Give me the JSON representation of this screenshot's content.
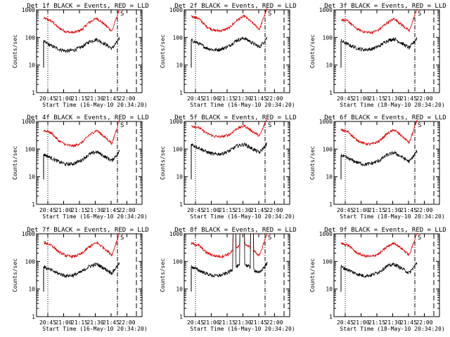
{
  "chart_data": {
    "type": "line",
    "y_scale": "log",
    "ylim": [
      1,
      1000
    ],
    "y_ticks": [
      1,
      10,
      100,
      1000
    ],
    "y_tick_labels": [
      "1",
      "10",
      "100",
      "1000"
    ],
    "ylabel": "Counts/sec",
    "x_tick_labels": [
      "20:45",
      "21:00",
      "21:15",
      "21:30",
      "21:45",
      "22:00"
    ],
    "xlabel": "Start Time (16-May-10 20:34:20)",
    "xlabel_alt": "Start Time (18-May-10 20:34:20)",
    "corner_label": "S",
    "colors": {
      "events": "#000000",
      "lld": "#e00000"
    },
    "panels": [
      {
        "title": "Det 1f BLACK = Events, RED = LLD",
        "xlabel_key": "xlabel",
        "lld": [
          500,
          400,
          220,
          160,
          150,
          190,
          350,
          500,
          300,
          170,
          1100
        ],
        "events": [
          70,
          50,
          38,
          32,
          35,
          45,
          70,
          85,
          60,
          40,
          90
        ],
        "spikes": []
      },
      {
        "title": "Det 2f BLACK = Events, RED = LLD",
        "xlabel_key": "xlabel",
        "lld": [
          600,
          480,
          250,
          180,
          175,
          220,
          420,
          600,
          350,
          200,
          1200
        ],
        "events": [
          80,
          60,
          42,
          35,
          38,
          50,
          80,
          95,
          65,
          45,
          100
        ],
        "spikes": []
      },
      {
        "title": "Det 3f BLACK = Events, RED = LLD",
        "xlabel_key": "xlabel_alt",
        "lld": [
          450,
          380,
          210,
          160,
          150,
          190,
          330,
          480,
          290,
          170,
          1100
        ],
        "events": [
          75,
          55,
          42,
          36,
          38,
          48,
          75,
          90,
          62,
          42,
          95
        ],
        "spikes": []
      },
      {
        "title": "Det 4f BLACK = Events, RED = LLD",
        "xlabel_key": "xlabel",
        "lld": [
          480,
          390,
          200,
          140,
          130,
          170,
          320,
          480,
          280,
          160,
          1150
        ],
        "events": [
          65,
          48,
          35,
          28,
          30,
          40,
          65,
          80,
          55,
          38,
          85
        ],
        "spikes": []
      },
      {
        "title": "Det 5f BLACK = Events, RED = LLD",
        "xlabel_key": "xlabel",
        "lld": [
          700,
          600,
          380,
          290,
          280,
          330,
          550,
          700,
          450,
          300,
          1300
        ],
        "events": [
          150,
          110,
          80,
          65,
          68,
          85,
          130,
          150,
          105,
          75,
          160
        ],
        "spikes": []
      },
      {
        "title": "Det 6f BLACK = Events, RED = LLD",
        "xlabel_key": "xlabel_alt",
        "lld": [
          500,
          410,
          220,
          160,
          150,
          190,
          350,
          500,
          300,
          170,
          1100
        ],
        "events": [
          60,
          45,
          34,
          28,
          30,
          38,
          60,
          75,
          52,
          35,
          85
        ],
        "spikes": []
      },
      {
        "title": "Det 7f BLACK = Events, RED = LLD",
        "xlabel_key": "xlabel",
        "lld": [
          480,
          400,
          220,
          160,
          150,
          190,
          340,
          480,
          300,
          170,
          1100
        ],
        "events": [
          65,
          48,
          36,
          30,
          32,
          42,
          66,
          80,
          56,
          38,
          88
        ],
        "spikes": []
      },
      {
        "title": "Det 8f BLACK = Events, RED = LLD",
        "xlabel_key": "xlabel",
        "lld": [
          450,
          380,
          210,
          160,
          150,
          190,
          330,
          450,
          280,
          160,
          1100
        ],
        "events": [
          65,
          48,
          36,
          30,
          32,
          42,
          66,
          80,
          56,
          38,
          88
        ],
        "spikes": [
          [
            0.55,
            0.59
          ],
          [
            0.64,
            0.7
          ],
          [
            0.78,
            0.82
          ]
        ]
      },
      {
        "title": "Det 9f BLACK = Events, RED = LLD",
        "xlabel_key": "xlabel_alt",
        "lld": [
          450,
          380,
          210,
          160,
          150,
          190,
          330,
          470,
          290,
          170,
          1100
        ],
        "events": [
          65,
          48,
          36,
          30,
          32,
          42,
          66,
          80,
          56,
          38,
          88
        ],
        "spikes": []
      }
    ]
  }
}
